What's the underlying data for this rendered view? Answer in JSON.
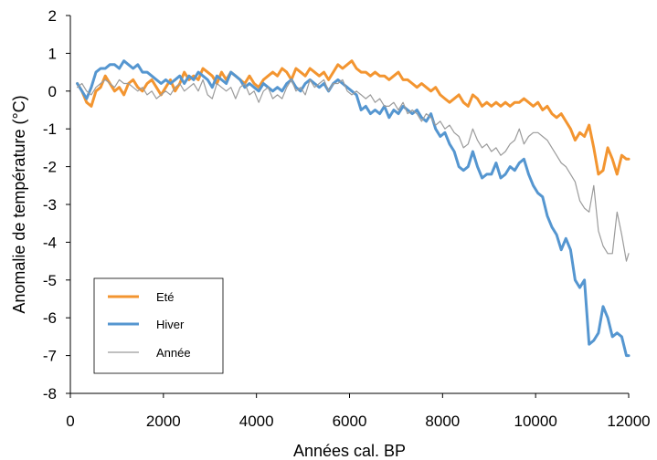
{
  "chart_data": {
    "type": "line",
    "xlabel": "Années cal. BP",
    "ylabel": "Anomalie de température (°C)",
    "xlim": [
      0,
      12000
    ],
    "ylim": [
      -8,
      2
    ],
    "xticks": [
      0,
      2000,
      4000,
      6000,
      8000,
      10000,
      12000
    ],
    "yticks": [
      2,
      1,
      0,
      -1,
      -2,
      -3,
      -4,
      -5,
      -6,
      -7,
      -8
    ],
    "grid": false,
    "legend_position": "bottom-left",
    "series": [
      {
        "name": "Eté",
        "color": "#f39530",
        "x": [
          150,
          250,
          350,
          450,
          550,
          650,
          750,
          850,
          950,
          1050,
          1150,
          1250,
          1350,
          1450,
          1550,
          1650,
          1750,
          1850,
          1950,
          2050,
          2150,
          2250,
          2350,
          2450,
          2550,
          2650,
          2750,
          2850,
          2950,
          3050,
          3150,
          3250,
          3350,
          3450,
          3550,
          3650,
          3750,
          3850,
          3950,
          4050,
          4150,
          4250,
          4350,
          4450,
          4550,
          4650,
          4750,
          4850,
          4950,
          5050,
          5150,
          5250,
          5350,
          5450,
          5550,
          5650,
          5750,
          5850,
          5950,
          6050,
          6150,
          6250,
          6350,
          6450,
          6550,
          6650,
          6750,
          6850,
          6950,
          7050,
          7150,
          7250,
          7350,
          7450,
          7550,
          7650,
          7750,
          7850,
          7950,
          8050,
          8150,
          8250,
          8350,
          8450,
          8550,
          8650,
          8750,
          8850,
          8950,
          9050,
          9150,
          9250,
          9350,
          9450,
          9550,
          9650,
          9750,
          9850,
          9950,
          10050,
          10150,
          10250,
          10350,
          10450,
          10550,
          10650,
          10750,
          10850,
          10950,
          11050,
          11150,
          11250,
          11350,
          11450,
          11550,
          11650,
          11750,
          11850,
          11950,
          12000
        ],
        "y": [
          0.2,
          0.0,
          -0.3,
          -0.4,
          0.0,
          0.1,
          0.4,
          0.2,
          0.0,
          0.1,
          -0.1,
          0.2,
          0.3,
          0.1,
          0.0,
          0.2,
          0.3,
          0.1,
          -0.1,
          0.1,
          0.3,
          0.0,
          0.2,
          0.5,
          0.3,
          0.4,
          0.3,
          0.6,
          0.5,
          0.4,
          0.2,
          0.5,
          0.3,
          0.5,
          0.4,
          0.3,
          0.2,
          0.4,
          0.2,
          0.1,
          0.3,
          0.4,
          0.5,
          0.4,
          0.6,
          0.5,
          0.3,
          0.6,
          0.5,
          0.4,
          0.6,
          0.5,
          0.4,
          0.5,
          0.3,
          0.5,
          0.7,
          0.6,
          0.7,
          0.8,
          0.6,
          0.5,
          0.5,
          0.4,
          0.5,
          0.4,
          0.4,
          0.3,
          0.4,
          0.5,
          0.3,
          0.3,
          0.2,
          0.1,
          0.2,
          0.1,
          0.0,
          0.1,
          -0.1,
          -0.2,
          -0.3,
          -0.2,
          -0.1,
          -0.3,
          -0.4,
          -0.1,
          -0.2,
          -0.4,
          -0.3,
          -0.4,
          -0.3,
          -0.4,
          -0.3,
          -0.4,
          -0.3,
          -0.3,
          -0.2,
          -0.3,
          -0.4,
          -0.3,
          -0.5,
          -0.4,
          -0.6,
          -0.7,
          -0.6,
          -0.8,
          -1.0,
          -1.3,
          -1.1,
          -1.2,
          -0.9,
          -1.5,
          -2.2,
          -2.1,
          -1.5,
          -1.8,
          -2.2,
          -1.7,
          -1.8,
          -1.8
        ]
      },
      {
        "name": "Hiver",
        "color": "#5596d0",
        "x": [
          150,
          250,
          350,
          450,
          550,
          650,
          750,
          850,
          950,
          1050,
          1150,
          1250,
          1350,
          1450,
          1550,
          1650,
          1750,
          1850,
          1950,
          2050,
          2150,
          2250,
          2350,
          2450,
          2550,
          2650,
          2750,
          2850,
          2950,
          3050,
          3150,
          3250,
          3350,
          3450,
          3550,
          3650,
          3750,
          3850,
          3950,
          4050,
          4150,
          4250,
          4350,
          4450,
          4550,
          4650,
          4750,
          4850,
          4950,
          5050,
          5150,
          5250,
          5350,
          5450,
          5550,
          5650,
          5750,
          5850,
          5950,
          6050,
          6150,
          6250,
          6350,
          6450,
          6550,
          6650,
          6750,
          6850,
          6950,
          7050,
          7150,
          7250,
          7350,
          7450,
          7550,
          7650,
          7750,
          7850,
          7950,
          8050,
          8150,
          8250,
          8350,
          8450,
          8550,
          8650,
          8750,
          8850,
          8950,
          9050,
          9150,
          9250,
          9350,
          9450,
          9550,
          9650,
          9750,
          9850,
          9950,
          10050,
          10150,
          10250,
          10350,
          10450,
          10550,
          10650,
          10750,
          10850,
          10950,
          11050,
          11150,
          11250,
          11350,
          11450,
          11550,
          11650,
          11750,
          11850,
          11950,
          12000
        ],
        "y": [
          0.2,
          0.0,
          -0.2,
          0.1,
          0.5,
          0.6,
          0.6,
          0.7,
          0.7,
          0.6,
          0.8,
          0.7,
          0.6,
          0.7,
          0.5,
          0.5,
          0.4,
          0.3,
          0.2,
          0.3,
          0.2,
          0.3,
          0.4,
          0.2,
          0.4,
          0.3,
          0.5,
          0.4,
          0.3,
          0.1,
          0.4,
          0.3,
          0.2,
          0.5,
          0.4,
          0.3,
          0.1,
          0.2,
          0.1,
          0.0,
          0.2,
          0.1,
          0.0,
          0.1,
          0.0,
          0.2,
          0.3,
          0.1,
          0.0,
          0.2,
          0.3,
          0.2,
          0.1,
          0.2,
          0.0,
          0.2,
          0.3,
          0.2,
          0.1,
          0.0,
          -0.1,
          -0.5,
          -0.4,
          -0.6,
          -0.5,
          -0.6,
          -0.4,
          -0.7,
          -0.5,
          -0.6,
          -0.4,
          -0.5,
          -0.6,
          -0.5,
          -0.7,
          -0.8,
          -0.6,
          -1.0,
          -1.2,
          -1.1,
          -1.4,
          -1.6,
          -2.0,
          -2.1,
          -2.0,
          -1.6,
          -2.0,
          -2.3,
          -2.2,
          -2.2,
          -1.9,
          -2.3,
          -2.2,
          -2.0,
          -2.1,
          -1.9,
          -1.8,
          -2.2,
          -2.5,
          -2.7,
          -2.8,
          -3.3,
          -3.6,
          -3.8,
          -4.2,
          -3.9,
          -4.2,
          -5.0,
          -5.2,
          -5.0,
          -6.7,
          -6.6,
          -6.4,
          -5.7,
          -6.0,
          -6.5,
          -6.4,
          -6.5,
          -7.0,
          -7.0
        ]
      },
      {
        "name": "Année",
        "color": "#9b9b9b",
        "x": [
          150,
          250,
          350,
          450,
          550,
          650,
          750,
          850,
          950,
          1050,
          1150,
          1250,
          1350,
          1450,
          1550,
          1650,
          1750,
          1850,
          1950,
          2050,
          2150,
          2250,
          2350,
          2450,
          2550,
          2650,
          2750,
          2850,
          2950,
          3050,
          3150,
          3250,
          3350,
          3450,
          3550,
          3650,
          3750,
          3850,
          3950,
          4050,
          4150,
          4250,
          4350,
          4450,
          4550,
          4650,
          4750,
          4850,
          4950,
          5050,
          5150,
          5250,
          5350,
          5450,
          5550,
          5650,
          5750,
          5850,
          5950,
          6050,
          6150,
          6250,
          6350,
          6450,
          6550,
          6650,
          6750,
          6850,
          6950,
          7050,
          7150,
          7250,
          7350,
          7450,
          7550,
          7650,
          7750,
          7850,
          7950,
          8050,
          8150,
          8250,
          8350,
          8450,
          8550,
          8650,
          8750,
          8850,
          8950,
          9050,
          9150,
          9250,
          9350,
          9450,
          9550,
          9650,
          9750,
          9850,
          9950,
          10050,
          10150,
          10250,
          10350,
          10450,
          10550,
          10650,
          10750,
          10850,
          10950,
          11050,
          11150,
          11250,
          11350,
          11450,
          11550,
          11650,
          11750,
          11850,
          11950,
          12000
        ],
        "y": [
          0.1,
          0.2,
          0.0,
          -0.1,
          0.1,
          0.2,
          0.3,
          0.2,
          0.1,
          0.3,
          0.2,
          0.2,
          0.1,
          0.0,
          0.1,
          -0.1,
          0.0,
          -0.2,
          -0.1,
          0.0,
          -0.1,
          0.1,
          0.2,
          0.0,
          0.1,
          0.2,
          0.0,
          0.3,
          -0.1,
          -0.2,
          0.2,
          0.1,
          0.0,
          0.1,
          -0.2,
          0.1,
          0.2,
          -0.1,
          0.0,
          -0.3,
          0.0,
          0.1,
          -0.2,
          -0.1,
          -0.2,
          0.1,
          0.3,
          0.0,
          0.1,
          -0.1,
          0.3,
          0.1,
          0.2,
          0.3,
          0.0,
          0.2,
          0.2,
          0.3,
          0.0,
          -0.1,
          0.0,
          -0.1,
          -0.2,
          -0.1,
          -0.3,
          -0.2,
          -0.4,
          -0.4,
          -0.3,
          -0.5,
          -0.3,
          -0.6,
          -0.5,
          -0.6,
          -0.8,
          -0.6,
          -0.7,
          -0.9,
          -0.8,
          -1.0,
          -0.9,
          -1.1,
          -1.2,
          -1.5,
          -1.4,
          -1.0,
          -1.3,
          -1.5,
          -1.4,
          -1.6,
          -1.5,
          -1.7,
          -1.6,
          -1.4,
          -1.3,
          -1.0,
          -1.4,
          -1.2,
          -1.1,
          -1.1,
          -1.2,
          -1.3,
          -1.5,
          -1.7,
          -1.9,
          -2.0,
          -2.2,
          -2.4,
          -2.9,
          -3.1,
          -3.2,
          -2.5,
          -3.7,
          -4.1,
          -4.3,
          -4.3,
          -3.2,
          -3.8,
          -4.5,
          -4.3
        ]
      }
    ]
  }
}
